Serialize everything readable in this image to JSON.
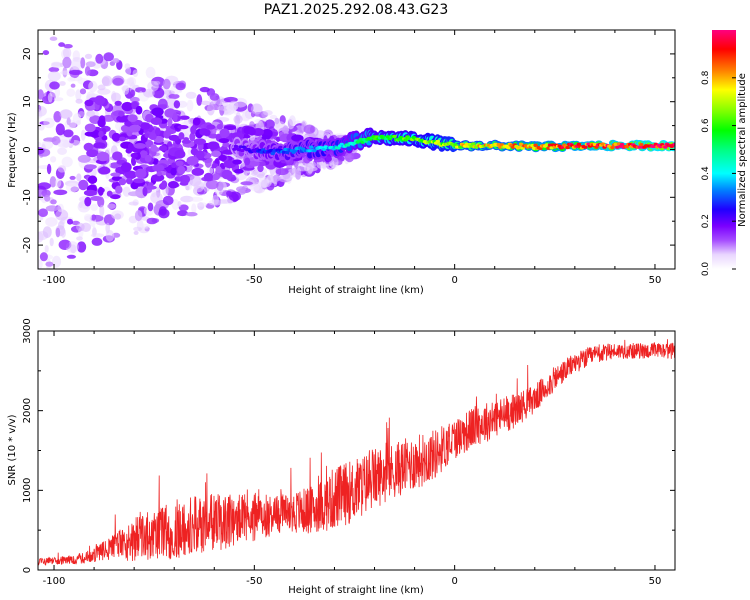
{
  "title": "PAZ1.2025.292.08.43.G23",
  "chart_data": [
    {
      "type": "heatmap",
      "description_of_data": "Spectrogram: normalized spectral amplitude vs height of straight line and frequency",
      "xlabel": "Height of straight line (km)",
      "ylabel": "Frequency (Hz)",
      "xlim": [
        -104,
        55
      ],
      "ylim": [
        -25,
        25
      ],
      "xticks": [
        -100,
        -50,
        0,
        50
      ],
      "yticks": [
        -20,
        -10,
        0,
        10,
        20
      ],
      "colorbar": {
        "label": "Normalized spectral amplitude",
        "range": [
          0,
          1
        ],
        "ticks": [
          0.0,
          0.2,
          0.4,
          0.6,
          0.8
        ],
        "colors": [
          "#ffffff",
          "#e9d6ff",
          "#a64dff",
          "#7a00ff",
          "#1f00ff",
          "#0080ff",
          "#00ffff",
          "#00ff80",
          "#00ff00",
          "#80ff00",
          "#ffff00",
          "#ff8000",
          "#ff0000",
          "#ff007f"
        ]
      },
      "ridge": {
        "description": "Energy concentrated near 0 Hz, increasing amplitude with height",
        "points": [
          {
            "x": -55,
            "f": 0.3,
            "amp": 0.25
          },
          {
            "x": -45,
            "f": -0.5,
            "amp": 0.35
          },
          {
            "x": -30,
            "f": 0.5,
            "amp": 0.45
          },
          {
            "x": -20,
            "f": 2.5,
            "amp": 0.6
          },
          {
            "x": -10,
            "f": 2.2,
            "amp": 0.65
          },
          {
            "x": 0,
            "f": 0.8,
            "amp": 0.75
          },
          {
            "x": 10,
            "f": 0.8,
            "amp": 0.8
          },
          {
            "x": 20,
            "f": 0.6,
            "amp": 0.85
          },
          {
            "x": 30,
            "f": 0.7,
            "amp": 0.9
          },
          {
            "x": 40,
            "f": 0.8,
            "amp": 0.95
          },
          {
            "x": 55,
            "f": 0.8,
            "amp": 1.0
          }
        ]
      }
    },
    {
      "type": "line",
      "xlabel": "Height of straight line (km)",
      "ylabel": "SNR (10 * v/v)",
      "xlim": [
        -104,
        55
      ],
      "ylim": [
        0,
        3000
      ],
      "xticks": [
        -100,
        -50,
        0,
        50
      ],
      "yticks": [
        0,
        1000,
        2000,
        3000
      ],
      "color": "#ee2222",
      "series": [
        {
          "name": "SNR",
          "x": [
            -104,
            -95,
            -90,
            -85,
            -80,
            -75,
            -70,
            -65,
            -60,
            -55,
            -50,
            -45,
            -40,
            -35,
            -30,
            -25,
            -20,
            -15,
            -10,
            -5,
            0,
            5,
            10,
            15,
            20,
            25,
            30,
            35,
            40,
            45,
            50,
            55
          ],
          "y": [
            100,
            130,
            180,
            300,
            380,
            440,
            500,
            550,
            600,
            620,
            650,
            700,
            720,
            760,
            900,
            1000,
            1150,
            1250,
            1350,
            1450,
            1650,
            1800,
            1900,
            2000,
            2150,
            2400,
            2600,
            2700,
            2750,
            2750,
            2750,
            2750
          ],
          "noise_amplitude": [
            40,
            60,
            90,
            160,
            280,
            300,
            380,
            380,
            360,
            350,
            300,
            260,
            280,
            300,
            400,
            400,
            380,
            350,
            350,
            320,
            260,
            260,
            250,
            220,
            180,
            160,
            130,
            120,
            100,
            100,
            100,
            100
          ]
        }
      ]
    }
  ]
}
